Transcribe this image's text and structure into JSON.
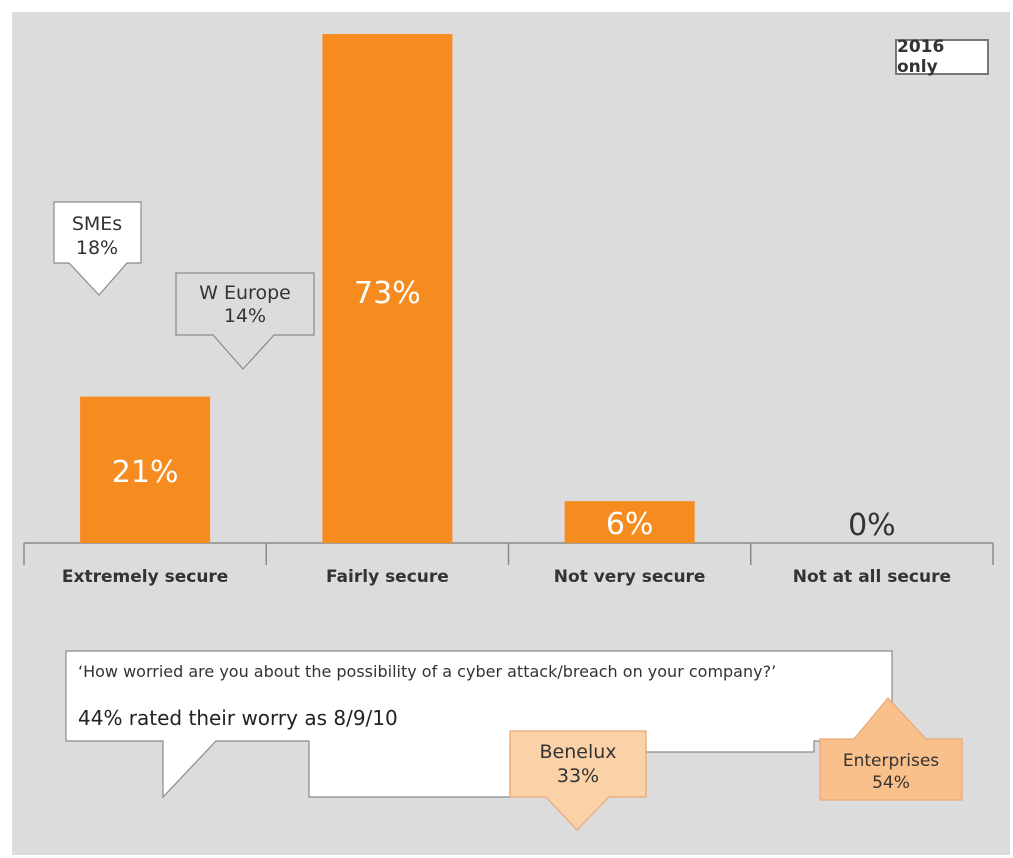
{
  "badge": "2016 only",
  "chart_data": {
    "type": "bar",
    "categories": [
      "Extremely secure",
      "Fairly secure",
      "Not very secure",
      "Not at all secure"
    ],
    "values": [
      21,
      73,
      6,
      0
    ],
    "data_labels": [
      "21%",
      "73%",
      "6%",
      "0%"
    ],
    "ylim": [
      0,
      73
    ],
    "grid": false,
    "bar_color": "#f68b1f"
  },
  "callouts": [
    {
      "line1": "SMEs",
      "line2": "18%"
    },
    {
      "line1": "W Europe",
      "line2": "14%"
    },
    {
      "line1": "Benelux",
      "line2": "33%"
    },
    {
      "line1": "Enterprises",
      "line2": "54%"
    }
  ],
  "question": {
    "text": "‘How worried are you about the possibility of a cyber attack/breach on your company?’",
    "answer": "44% rated their worry as 8/9/10"
  },
  "colors": {
    "background": "#dcdcdd",
    "bar": "#f68b1f",
    "peach_callout": "#fbd2a8",
    "peach_callout_dark": "#f9c08c"
  }
}
